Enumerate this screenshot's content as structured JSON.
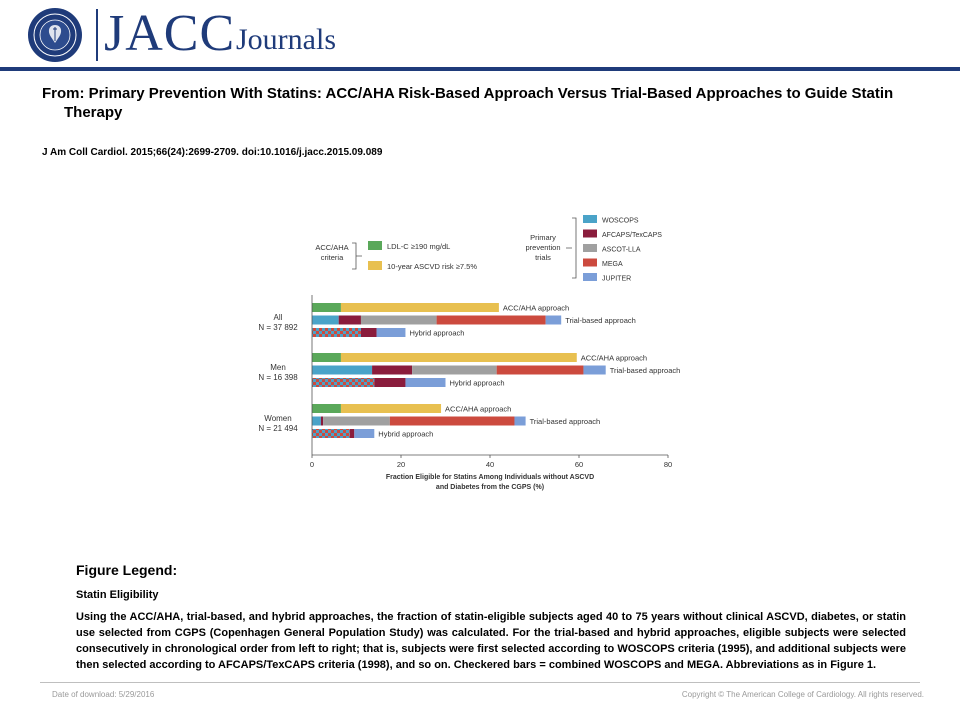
{
  "header": {
    "logo_main": "JACC",
    "logo_sub": "Journals",
    "seal_text": "AMERICAN COLLEGE OF CARDIOLOGY"
  },
  "title": "From: Primary Prevention With Statins: ACC/AHA Risk-Based Approach Versus Trial-Based Approaches to Guide Statin Therapy",
  "citation": "J Am Coll Cardiol. 2015;66(24):2699-2709. doi:10.1016/j.jacc.2015.09.089",
  "chart_data": {
    "type": "bar",
    "orientation": "horizontal-stacked",
    "xlabel": "Fraction Eligible for Statins Among Individuals without ASCVD and Diabetes from the CGPS (%)",
    "xlabel_lines": [
      "Fraction Eligible for Statins Among Individuals without ASCVD",
      "and Diabetes from the CGPS (%)"
    ],
    "xlim": [
      0,
      80
    ],
    "xticks": [
      "0",
      "20",
      "40",
      "60",
      "80"
    ],
    "grid": false,
    "legend_acc": {
      "label_lines": [
        "ACC/AHA",
        "criteria"
      ],
      "items": [
        {
          "label": "LDL-C ≥190 mg/dL",
          "color": "#5aa85a"
        },
        {
          "label": "10-year ASCVD risk ≥7.5%",
          "color": "#e8c050"
        }
      ]
    },
    "legend_trials": {
      "label_lines": [
        "Primary",
        "prevention",
        "trials"
      ],
      "items": [
        {
          "label": "WOSCOPS",
          "color": "#4aa3c8"
        },
        {
          "label": "AFCAPS/TexCAPS",
          "color": "#8a1c3c"
        },
        {
          "label": "ASCOT-LLA",
          "color": "#a0a0a0"
        },
        {
          "label": "MEGA",
          "color": "#cc4a3e"
        },
        {
          "label": "JUPITER",
          "color": "#7b9ed8"
        }
      ]
    },
    "groups": [
      {
        "name": "All",
        "n": "N = 37 892",
        "rows": [
          {
            "label": "ACC/AHA approach",
            "segments": [
              {
                "key": "LDL-C",
                "value": 6.5,
                "color": "#5aa85a"
              },
              {
                "key": "ASCVD risk",
                "value": 35.5,
                "color": "#e8c050"
              }
            ]
          },
          {
            "label": "Trial-based approach",
            "segments": [
              {
                "key": "WOSCOPS",
                "value": 6,
                "color": "#4aa3c8"
              },
              {
                "key": "AFCAPS/TexCAPS",
                "value": 5,
                "color": "#8a1c3c"
              },
              {
                "key": "ASCOT-LLA",
                "value": 17,
                "color": "#a0a0a0"
              },
              {
                "key": "MEGA",
                "value": 24.5,
                "color": "#cc4a3e"
              },
              {
                "key": "JUPITER",
                "value": 3.5,
                "color": "#7b9ed8"
              }
            ]
          },
          {
            "label": "Hybrid approach",
            "segments": [
              {
                "key": "WOSCOPS + MEGA",
                "value": 11,
                "checkered": true
              },
              {
                "key": "AFCAPS/TexCAPS",
                "value": 3.5,
                "color": "#8a1c3c"
              },
              {
                "key": "JUPITER",
                "value": 6.5,
                "color": "#7b9ed8"
              }
            ]
          }
        ]
      },
      {
        "name": "Men",
        "n": "N = 16 398",
        "rows": [
          {
            "label": "ACC/AHA approach",
            "segments": [
              {
                "key": "LDL-C",
                "value": 6.5,
                "color": "#5aa85a"
              },
              {
                "key": "ASCVD risk",
                "value": 53,
                "color": "#e8c050"
              }
            ]
          },
          {
            "label": "Trial-based approach",
            "segments": [
              {
                "key": "WOSCOPS",
                "value": 13.5,
                "color": "#4aa3c8"
              },
              {
                "key": "AFCAPS/TexCAPS",
                "value": 9,
                "color": "#8a1c3c"
              },
              {
                "key": "ASCOT-LLA",
                "value": 19,
                "color": "#a0a0a0"
              },
              {
                "key": "MEGA",
                "value": 19.5,
                "color": "#cc4a3e"
              },
              {
                "key": "JUPITER",
                "value": 5,
                "color": "#7b9ed8"
              }
            ]
          },
          {
            "label": "Hybrid approach",
            "segments": [
              {
                "key": "WOSCOPS + MEGA",
                "value": 14,
                "checkered": true
              },
              {
                "key": "AFCAPS/TexCAPS",
                "value": 7,
                "color": "#8a1c3c"
              },
              {
                "key": "JUPITER",
                "value": 9,
                "color": "#7b9ed8"
              }
            ]
          }
        ]
      },
      {
        "name": "Women",
        "n": "N = 21 494",
        "rows": [
          {
            "label": "ACC/AHA approach",
            "segments": [
              {
                "key": "LDL-C",
                "value": 6.5,
                "color": "#5aa85a"
              },
              {
                "key": "ASCVD risk",
                "value": 22.5,
                "color": "#e8c050"
              }
            ]
          },
          {
            "label": "Trial-based approach",
            "segments": [
              {
                "key": "WOSCOPS",
                "value": 2,
                "color": "#4aa3c8"
              },
              {
                "key": "AFCAPS/TexCAPS",
                "value": 0.5,
                "color": "#8a1c3c"
              },
              {
                "key": "ASCOT-LLA",
                "value": 15,
                "color": "#a0a0a0"
              },
              {
                "key": "MEGA",
                "value": 28,
                "color": "#cc4a3e"
              },
              {
                "key": "JUPITER",
                "value": 2.5,
                "color": "#7b9ed8"
              }
            ]
          },
          {
            "label": "Hybrid approach",
            "segments": [
              {
                "key": "WOSCOPS + MEGA",
                "value": 8.5,
                "checkered": true
              },
              {
                "key": "AFCAPS/TexCAPS",
                "value": 1,
                "color": "#8a1c3c"
              },
              {
                "key": "JUPITER",
                "value": 4.5,
                "color": "#7b9ed8"
              }
            ]
          }
        ]
      }
    ]
  },
  "legend": {
    "heading": "Figure Legend:",
    "subtitle": "Statin Eligibility",
    "body": "Using the ACC/AHA, trial-based, and hybrid approaches, the fraction of statin-eligible subjects aged 40 to 75 years without clinical ASCVD, diabetes, or statin use selected from CGPS (Copenhagen General Population Study) was calculated. For the trial-based and hybrid approaches, eligible subjects were selected consecutively in chronological order from left to right; that is, subjects were first selected according to WOSCOPS criteria (1995), and additional subjects were then selected according to AFCAPS/TexCAPS criteria (1998), and so on. Checkered bars = combined WOSCOPS and MEGA. Abbreviations as in Figure 1."
  },
  "footer": {
    "download": "Date of download: 5/29/2016",
    "copyright": "Copyright © The American College of Cardiology. All rights reserved."
  }
}
